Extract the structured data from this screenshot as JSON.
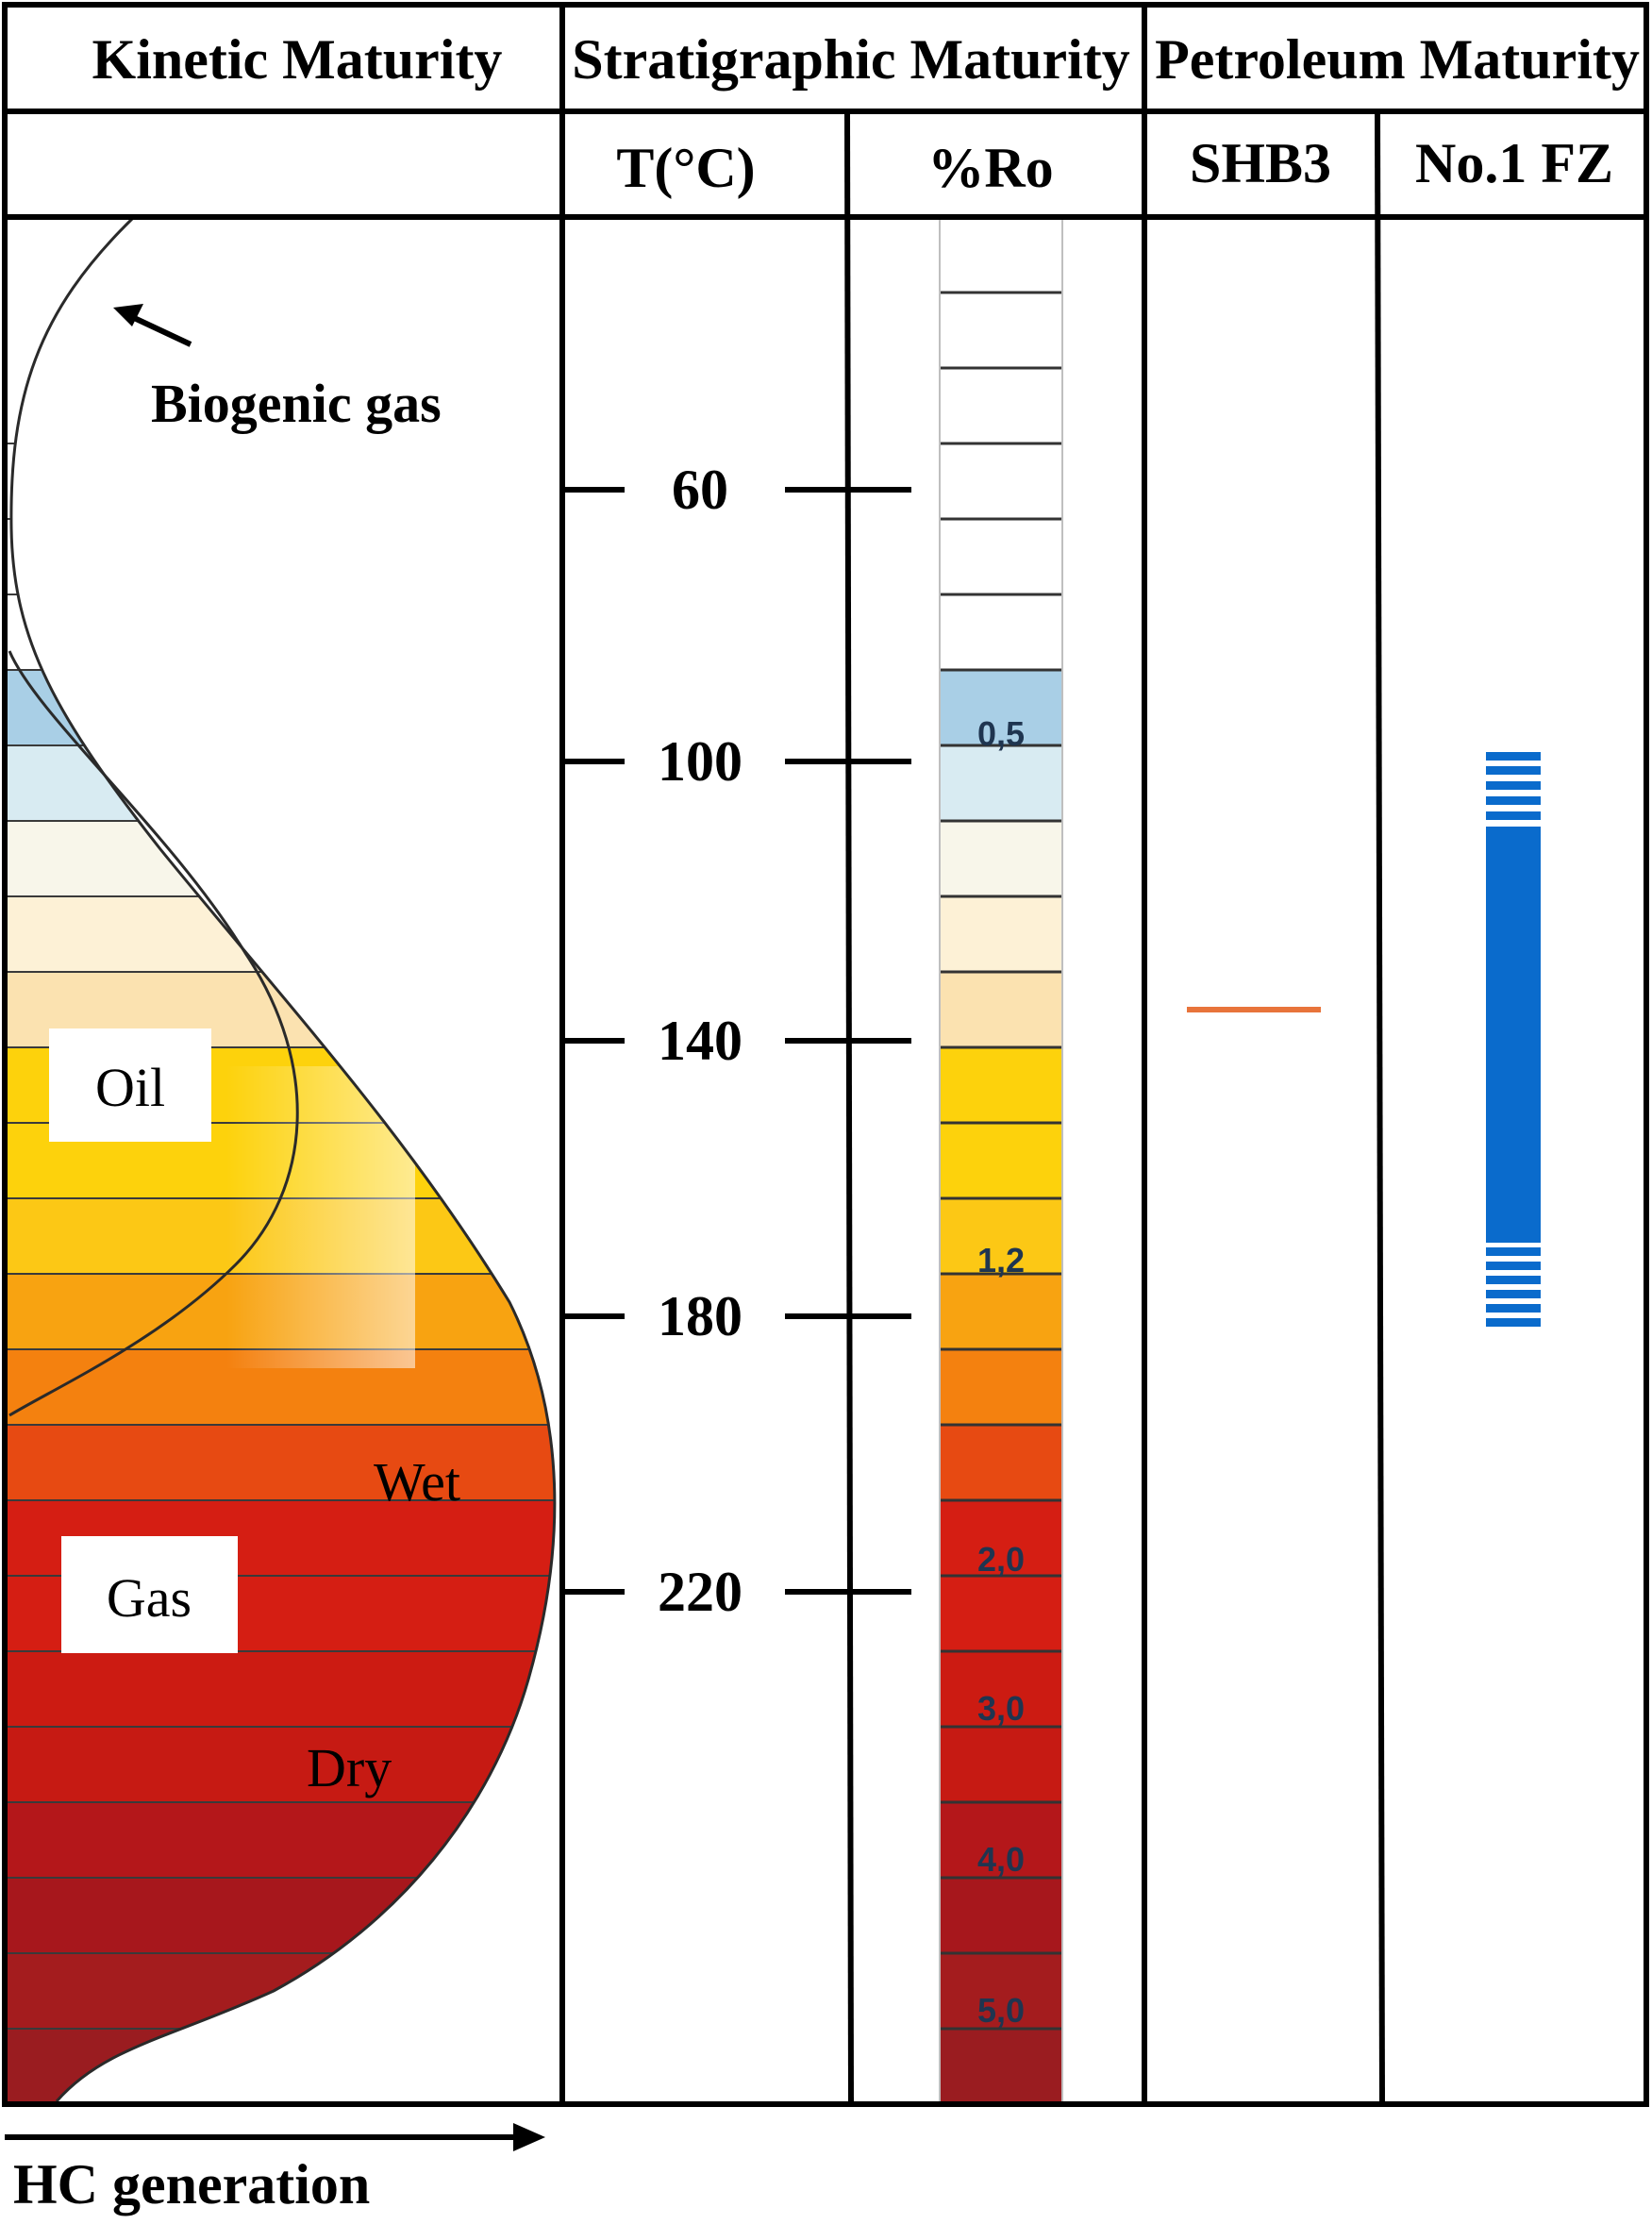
{
  "headers": {
    "kinetic": "Kinetic Maturity",
    "stratigraphic": "Stratigraphic Maturity",
    "petroleum": "Petroleum Maturity",
    "temp": "T(°C)",
    "ro": "%Ro",
    "shb3": "SHB3",
    "fz": "No.1 FZ"
  },
  "kinetic_labels": {
    "biogenic": "Biogenic gas",
    "oil": "Oil",
    "gas": "Gas",
    "wet": "Wet",
    "dry": "Dry"
  },
  "temperature_ticks": [
    "60",
    "100",
    "140",
    "180",
    "220"
  ],
  "ro_labels": [
    "0.5",
    "1.2",
    "2.0",
    "3.0",
    "4.0",
    "5.0"
  ],
  "band_colors": [
    "#ffffff",
    "#ffffff",
    "#ffffff",
    "#ffffff",
    "#ffffff",
    "#ffffff",
    "#a9cfe6",
    "#d8ebf2",
    "#f8f6ea",
    "#fdf1d6",
    "#fbe2b0",
    "#fdd20c",
    "#fdd20c",
    "#fcc815",
    "#f8a311",
    "#f4810f",
    "#e74a12",
    "#d51e13",
    "#d51e13",
    "#cc1b12",
    "#c61a13",
    "#b4171a",
    "#a7171c",
    "#a41c1e",
    "#9a1c20"
  ],
  "petroleum": {
    "shb3_color": "#e8743b",
    "fz_color": "#0a6bcc"
  },
  "footer": {
    "hc_generation": "HC generation"
  }
}
